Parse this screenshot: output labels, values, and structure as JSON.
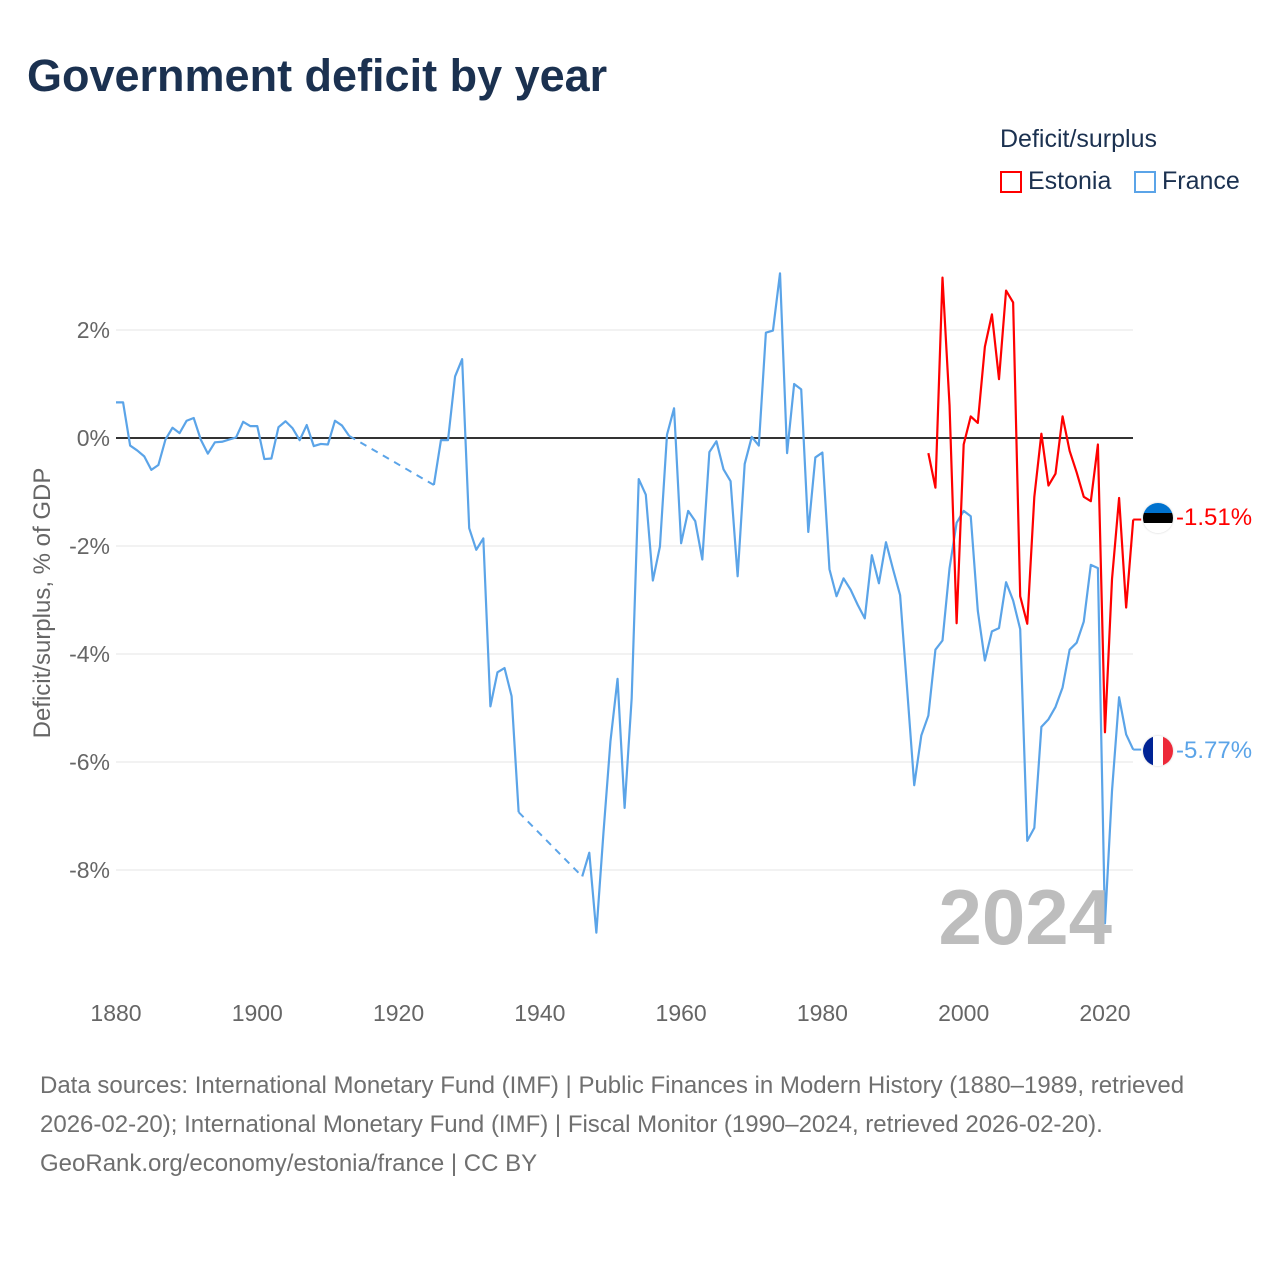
{
  "title": "Government deficit by year",
  "legend": {
    "title": "Deficit/surplus",
    "items": [
      "Estonia",
      "France"
    ]
  },
  "watermark_year": "2024",
  "end_labels": {
    "estonia": "-1.51%",
    "france": "-5.77%"
  },
  "flags": {
    "estonia": "estonia-flag-icon",
    "france": "france-flag-icon"
  },
  "footer": {
    "sources": "Data sources: International Monetary Fund (IMF) | Public Finances in Modern History (1880–1989, retrieved 2026-02-20); International Monetary Fund (IMF) | Fiscal Monitor (1990–2024, retrieved 2026-02-20).",
    "credit": "GeoRank.org/economy/estonia/france | CC BY"
  },
  "chart_data": {
    "type": "line",
    "title": "Government deficit by year",
    "xlabel": "",
    "ylabel": "Deficit/surplus, % of GDP",
    "xlim": [
      1880,
      2024
    ],
    "ylim": [
      -9.5,
      3.2
    ],
    "xticks": [
      1880,
      1900,
      1920,
      1940,
      1960,
      1980,
      2000,
      2020
    ],
    "yticks": [
      2,
      0,
      -2,
      -4,
      -6,
      -8
    ],
    "ytick_labels": [
      "2%",
      "0%",
      "-2%",
      "-4%",
      "-6%",
      "-8%"
    ],
    "grid": true,
    "legend_position": "top-right",
    "series": [
      {
        "name": "Estonia",
        "color": "#ff0000",
        "segments": [
          {
            "start_year": 1995,
            "values": [
              -0.28,
              -0.92,
              2.97,
              0.6,
              -3.43,
              -0.12,
              0.4,
              0.28,
              1.69,
              2.29,
              1.09,
              2.73,
              2.51,
              -2.93,
              -3.44,
              -1.09,
              0.08,
              -0.88,
              -0.66,
              0.4,
              -0.24,
              -0.64,
              -1.09,
              -1.17,
              -0.12,
              -5.45,
              -2.61,
              -1.11,
              -3.14,
              -1.51
            ]
          }
        ]
      },
      {
        "name": "France",
        "color": "#5ba4e8",
        "segments": [
          {
            "start_year": 1880,
            "values": [
              0.66,
              0.66,
              -0.14,
              -0.23,
              -0.34,
              -0.59,
              -0.5,
              -0.03,
              0.19,
              0.09,
              0.32,
              0.37,
              -0.03,
              -0.29,
              -0.08,
              -0.07,
              -0.03,
              0.01,
              0.3,
              0.22,
              0.22,
              -0.39,
              -0.38,
              0.2,
              0.31,
              0.18,
              -0.04,
              0.24,
              -0.15,
              -0.11,
              -0.12,
              0.32,
              0.23,
              0.04
            ]
          },
          {
            "start_year": 1925,
            "values": [
              -0.87,
              -0.04,
              -0.04,
              1.14,
              1.46,
              -1.67,
              -2.07,
              -1.86,
              -4.97,
              -4.34,
              -4.26,
              -4.78,
              -6.93
            ]
          },
          {
            "start_year": 1946,
            "values": [
              -8.12,
              -7.68,
              -9.16,
              -7.32,
              -5.61,
              -4.46,
              -6.85,
              -4.82,
              -0.76,
              -1.05,
              -2.64,
              -2.01,
              0.06,
              0.55,
              -1.95,
              -1.35,
              -1.54,
              -2.25,
              -0.26,
              -0.06,
              -0.58,
              -0.8,
              -2.56,
              -0.48,
              0.02,
              -0.14,
              1.95,
              1.99,
              3.05,
              -0.28,
              1.0,
              0.9,
              -1.74,
              -0.36,
              -0.27,
              -2.43,
              -2.93,
              -2.6,
              -2.81,
              -3.09,
              -3.34,
              -2.17,
              -2.69,
              -1.93,
              -2.43,
              -2.91,
              -4.66,
              -6.43,
              -5.51,
              -5.14,
              -3.92,
              -3.75,
              -2.41,
              -1.57,
              -1.35,
              -1.45,
              -3.2,
              -4.12,
              -3.58,
              -3.52,
              -2.67,
              -3.01,
              -3.54,
              -7.46,
              -7.22,
              -5.35,
              -5.21,
              -4.98,
              -4.62,
              -3.92,
              -3.79,
              -3.4,
              -2.35,
              -2.41,
              -8.99,
              -6.53,
              -4.8,
              -5.49,
              -5.77
            ]
          }
        ]
      }
    ]
  }
}
